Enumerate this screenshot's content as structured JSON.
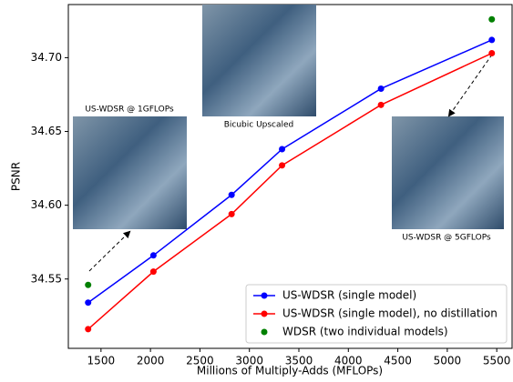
{
  "chart_data": {
    "type": "line",
    "xlabel": "Millions of Multiply-Adds (MFLOPs)",
    "ylabel": "PSNR",
    "xlim": [
      1170,
      5655
    ],
    "ylim": [
      34.503,
      34.736
    ],
    "xticks": [
      1500,
      2000,
      2500,
      3000,
      3500,
      4000,
      4500,
      5000,
      5500
    ],
    "yticks": [
      34.55,
      {
        "value": 34.6,
        "label": "34.60"
      },
      34.65,
      {
        "value": 34.7,
        "label": "34.70"
      }
    ],
    "legend": "lower right",
    "series": [
      {
        "name": "US-WDSR (single model)",
        "color": "#0000ff",
        "style": "line",
        "x": [
          1370,
          2030,
          2820,
          3330,
          4330,
          5450
        ],
        "values": [
          34.534,
          34.566,
          34.607,
          34.638,
          34.679,
          34.712
        ]
      },
      {
        "name": "US-WDSR (single model), no distillation",
        "color": "#ff0000",
        "style": "line",
        "x": [
          1370,
          2030,
          2820,
          3330,
          4330,
          5450
        ],
        "values": [
          34.516,
          34.555,
          34.594,
          34.627,
          34.668,
          34.703
        ]
      },
      {
        "name": "WDSR (two individual models)",
        "color": "#008000",
        "style": "points",
        "x": [
          1370,
          5450
        ],
        "values": [
          34.546,
          34.726
        ]
      }
    ],
    "image_captions": [
      "US-WDSR @ 1GFLOPs",
      "Bicubic Upscaled",
      "US-WDSR @ 5GFLOPs"
    ]
  }
}
